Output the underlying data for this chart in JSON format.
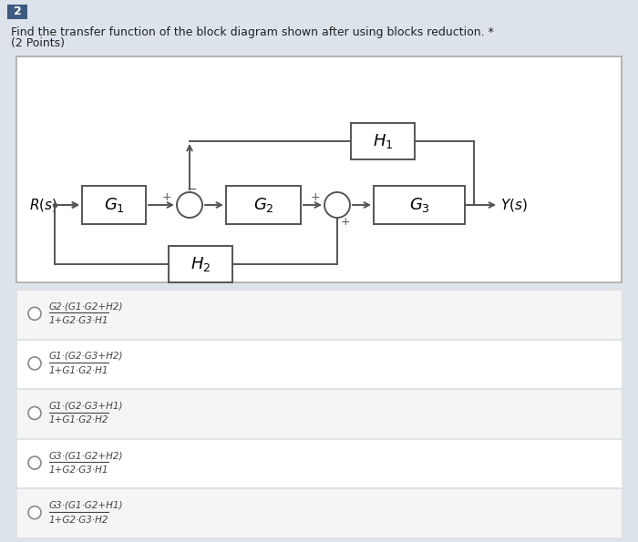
{
  "bg_color": "#dde3ea",
  "header_bg": "#dde3ea",
  "white_bg": "#ffffff",
  "question_number": "2",
  "question_number_bg": "#3d5a80",
  "question_text": "Find the transfer function of the block diagram shown after using blocks reduction. *",
  "question_subtext": "(2 Points)",
  "diagram_bg": "#ffffff",
  "diagram_border": "#aaaaaa",
  "line_color": "#555555",
  "options": [
    {
      "numerator": "G2·(G1·G2+H2)",
      "denominator": "1+G2·G3·H1"
    },
    {
      "numerator": "G1·(G2·G3+H2)",
      "denominator": "1+G1·G2·H1"
    },
    {
      "numerator": "G1·(G2·G3+H1)",
      "denominator": "1+G1·G2·H2"
    },
    {
      "numerator": "G3·(G1·G2+H2)",
      "denominator": "1+G2·G3·H1"
    },
    {
      "numerator": "G3·(G1·G2+H1)",
      "denominator": "1+G2·G3·H2"
    }
  ],
  "option_bg": [
    "#f0f0f0",
    "#ffffff",
    "#f0f0f0",
    "#ffffff",
    "#f0f0f0"
  ]
}
